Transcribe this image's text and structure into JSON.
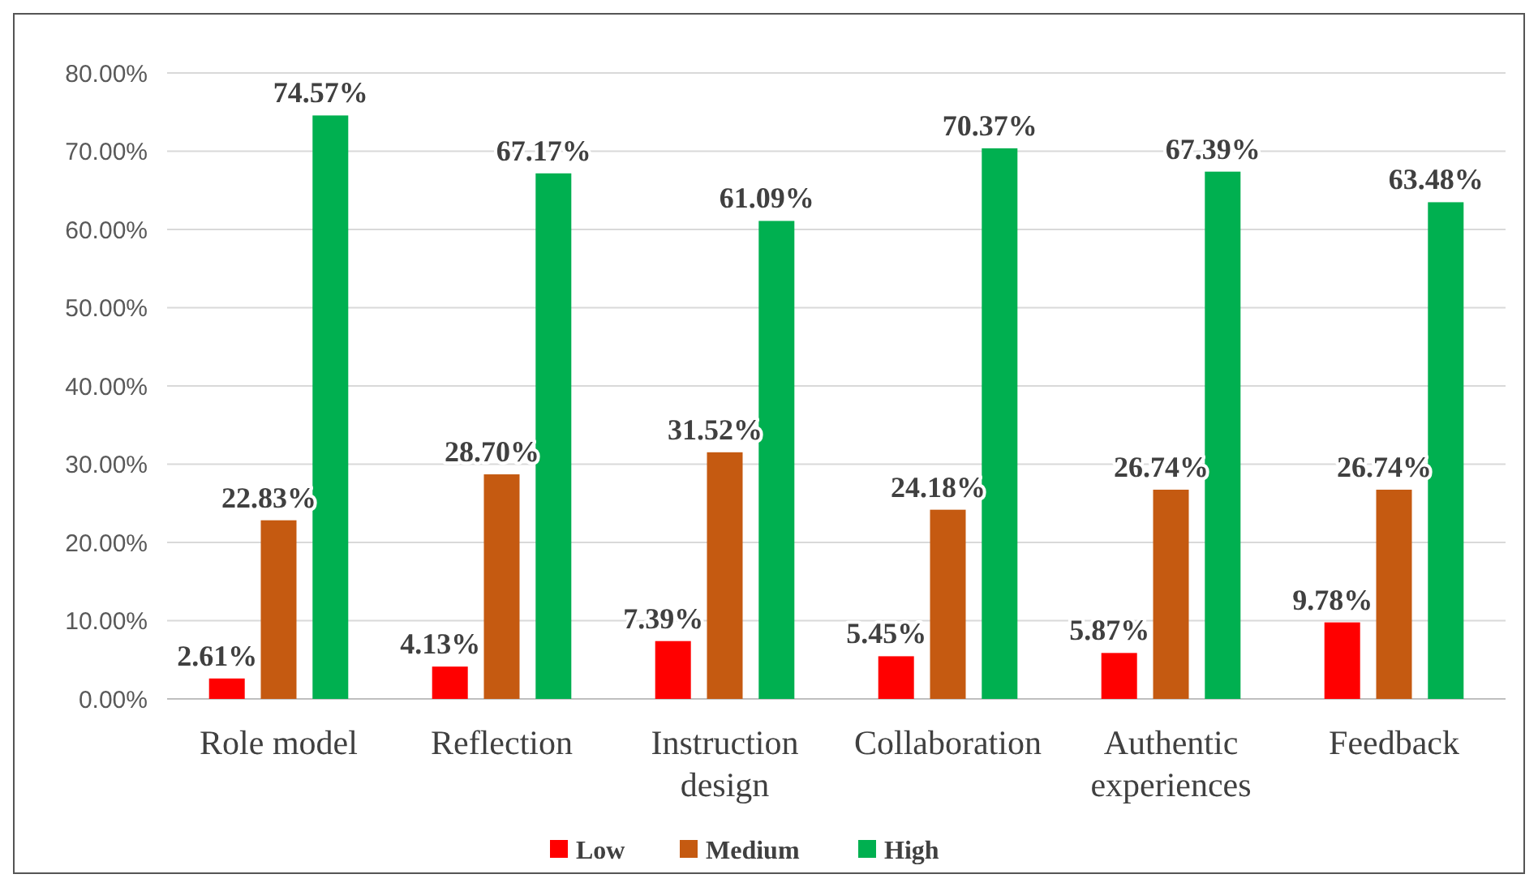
{
  "chart_data": {
    "type": "bar",
    "categories": [
      "Role model",
      "Reflection",
      "Instruction design",
      "Collaboration",
      "Authentic experiences",
      "Feedback"
    ],
    "series": [
      {
        "name": "Low",
        "color": "#ff0000",
        "values": [
          2.61,
          4.13,
          7.39,
          5.45,
          5.87,
          9.78
        ],
        "value_labels": [
          "2.61%",
          "4.13%",
          "7.39%",
          "5.45%",
          "5.87%",
          "9.78%"
        ]
      },
      {
        "name": "Medium",
        "color": "#c55a11",
        "values": [
          22.83,
          28.7,
          31.52,
          24.18,
          26.74,
          26.74
        ],
        "value_labels": [
          "22.83%",
          "28.70%",
          "31.52%",
          "24.18%",
          "26.74%",
          "26.74%"
        ]
      },
      {
        "name": "High",
        "color": "#00b050",
        "values": [
          74.57,
          67.17,
          61.09,
          70.37,
          67.39,
          63.48
        ],
        "value_labels": [
          "74.57%",
          "67.17%",
          "61.09%",
          "70.37%",
          "67.39%",
          "63.48%"
        ]
      }
    ],
    "ylim": [
      0,
      80
    ],
    "yticks": [
      {
        "value": 0,
        "label": "0.00%"
      },
      {
        "value": 10,
        "label": "10.00%"
      },
      {
        "value": 20,
        "label": "20.00%"
      },
      {
        "value": 30,
        "label": "30.00%"
      },
      {
        "value": 40,
        "label": "40.00%"
      },
      {
        "value": 50,
        "label": "50.00%"
      },
      {
        "value": 60,
        "label": "60.00%"
      },
      {
        "value": 70,
        "label": "70.00%"
      },
      {
        "value": 80,
        "label": "80.00%"
      }
    ],
    "grid": "y",
    "legend": "bottom"
  }
}
